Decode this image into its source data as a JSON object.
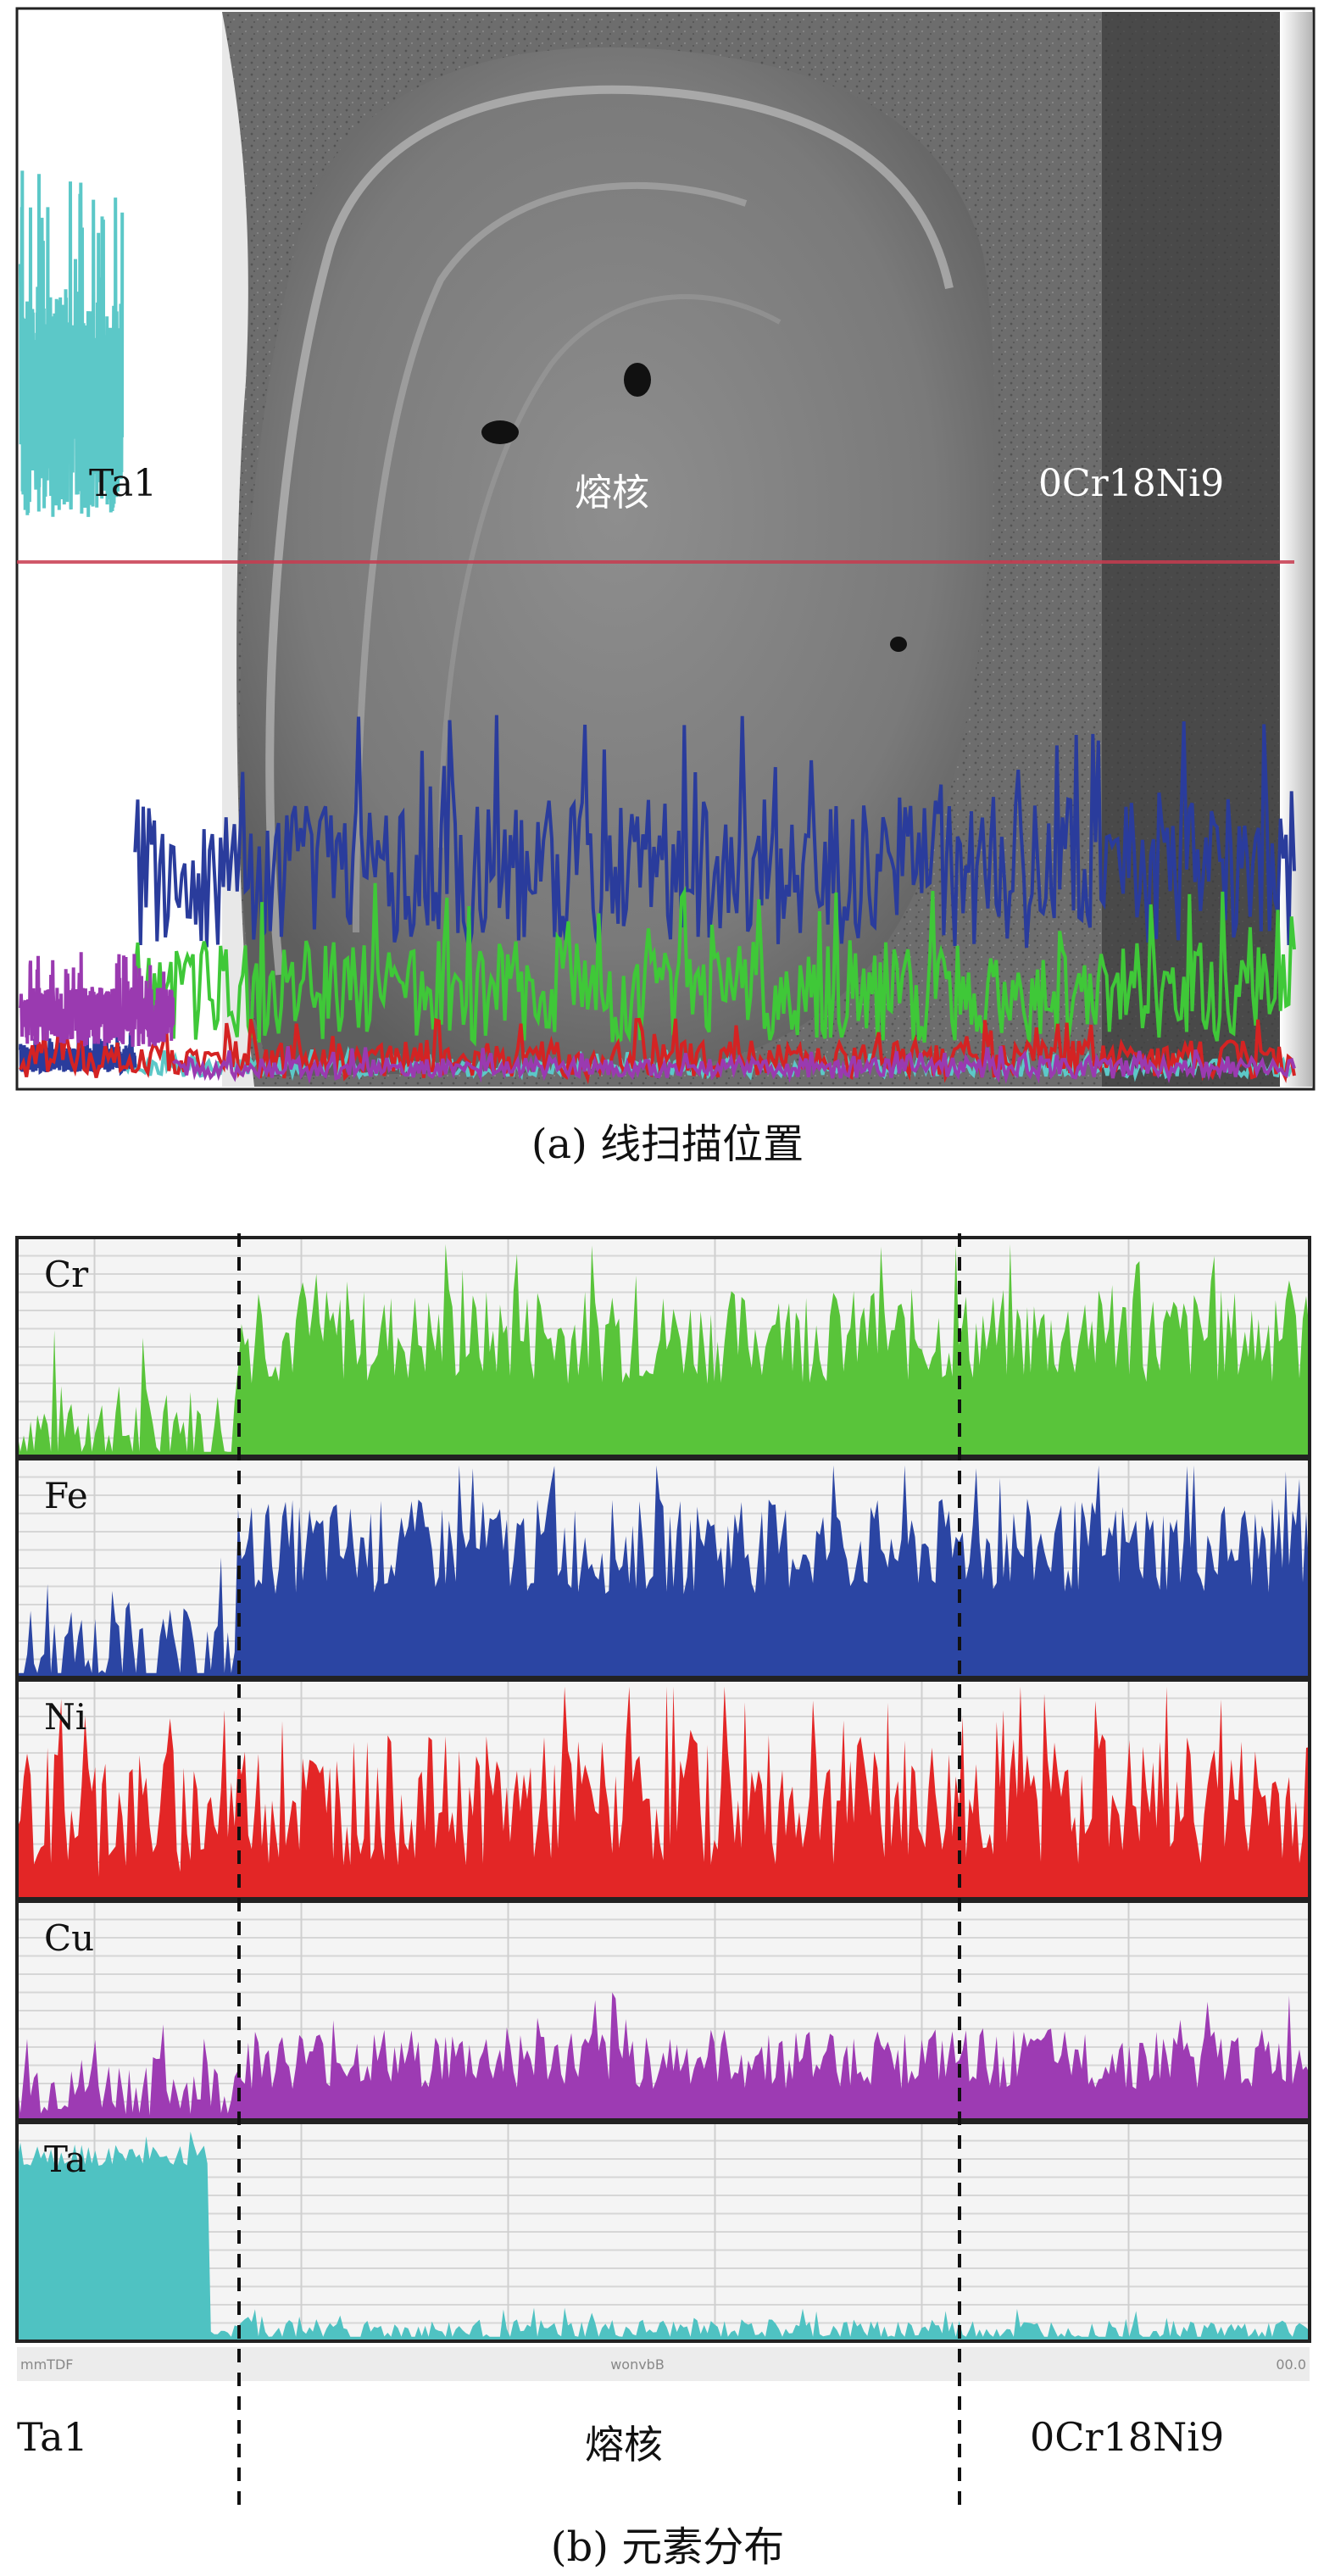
{
  "panel_a": {
    "caption": "(a) 线扫描位置",
    "labels": {
      "left": "Ta1",
      "center": "熔核",
      "right": "0Cr18Ni9"
    },
    "colors": {
      "Ta": "#5cc8c8",
      "Fe": "#2a3c9c",
      "Cr": "#3fc838",
      "Ni": "#d42323",
      "Cu": "#9a3ab0",
      "scan_line": "#c83c50"
    }
  },
  "panel_b": {
    "caption": "(b) 元素分布",
    "bottom_labels": {
      "left": "Ta1",
      "center": "熔核",
      "right": "0Cr18Ni9"
    },
    "axis_marks": {
      "left": "mmTDF",
      "center": "wonvbB",
      "right": "00.0"
    },
    "tracks": [
      {
        "name": "Cr",
        "color": "#59c43a",
        "base": 0.12,
        "level": 0.55,
        "noise": 0.22,
        "step": 0.17
      },
      {
        "name": "Fe",
        "color": "#2b45a3",
        "base": 0.1,
        "level": 0.6,
        "noise": 0.22,
        "step": 0.17
      },
      {
        "name": "Ni",
        "color": "#e32626",
        "base": 0.4,
        "level": 0.45,
        "noise": 0.3,
        "step": 0.17
      },
      {
        "name": "Cu",
        "color": "#9d3bb3",
        "base": 0.15,
        "level": 0.28,
        "noise": 0.14,
        "step": 0.17
      },
      {
        "name": "Ta",
        "color": "#4fc2c2",
        "base": 0.85,
        "level": 0.05,
        "noise": 0.05,
        "step": 0.15
      }
    ],
    "boundaries": [
      0.17,
      0.74
    ]
  }
}
